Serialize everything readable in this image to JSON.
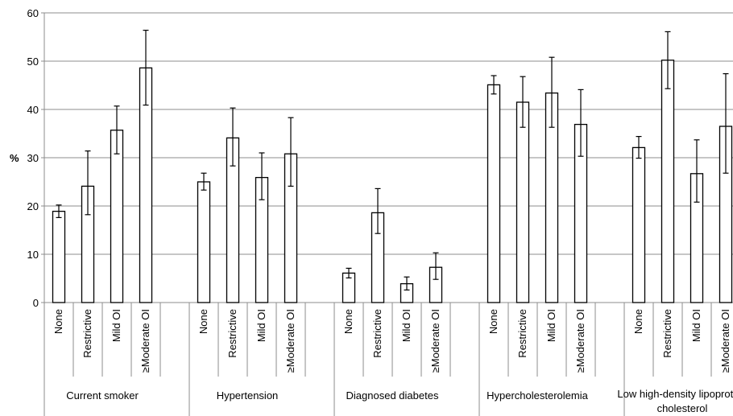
{
  "chart_data": {
    "type": "bar",
    "title": "",
    "ylabel": "%",
    "xlabel": "",
    "ylim": [
      0,
      60
    ],
    "yticks": [
      0,
      10,
      20,
      30,
      40,
      50,
      60
    ],
    "grid": true,
    "legend": "none",
    "categories": [
      "None",
      "Restrictive",
      "Mild OI",
      "≥Moderate OI"
    ],
    "groups": [
      {
        "label": "Current smoker",
        "values": [
          18.9,
          24.1,
          35.7,
          48.6
        ],
        "error_low": [
          17.6,
          18.2,
          30.8,
          40.9
        ],
        "error_high": [
          20.2,
          31.4,
          40.7,
          56.4
        ]
      },
      {
        "label": "Hypertension",
        "values": [
          25.0,
          34.1,
          25.9,
          30.8
        ],
        "error_low": [
          23.3,
          28.3,
          21.3,
          24.1
        ],
        "error_high": [
          26.8,
          40.3,
          31.0,
          38.3
        ]
      },
      {
        "label": "Diagnosed diabetes",
        "values": [
          6.1,
          18.6,
          3.9,
          7.3
        ],
        "error_low": [
          5.1,
          14.3,
          2.6,
          4.8
        ],
        "error_high": [
          7.1,
          23.6,
          5.3,
          10.3
        ]
      },
      {
        "label": "Hypercholesterolemia",
        "values": [
          45.1,
          41.5,
          43.4,
          36.9
        ],
        "error_low": [
          43.2,
          36.3,
          36.3,
          30.3
        ],
        "error_high": [
          47.0,
          46.8,
          50.8,
          44.1
        ]
      },
      {
        "label": "Low high-density lipoprotein cholesterol",
        "values": [
          32.1,
          50.2,
          26.7,
          36.5
        ],
        "error_low": [
          29.9,
          44.3,
          20.8,
          26.8
        ],
        "error_high": [
          34.4,
          56.1,
          33.7,
          47.4
        ]
      }
    ],
    "colors": {
      "bar_fill": "#ffffff",
      "bar_stroke": "#000000",
      "grid": "#8c8c8c"
    }
  }
}
